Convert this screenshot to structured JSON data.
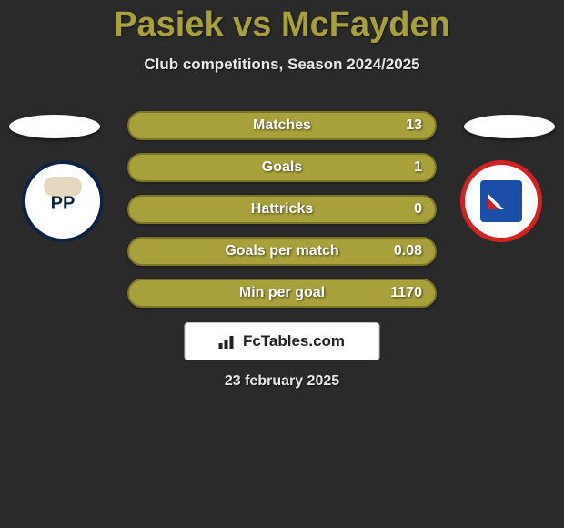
{
  "header": {
    "title": "Pasiek vs McFayden",
    "subtitle": "Club competitions, Season 2024/2025"
  },
  "style": {
    "background_color": "#2a2a2a",
    "title_color": "#a8a03a",
    "subtitle_color": "#e8e8e8",
    "bar_color": "#a8a03a",
    "bar_border_color": "#7b7528",
    "text_color": "#ffffff",
    "title_fontsize": 38,
    "subtitle_fontsize": 17,
    "bar_label_fontsize": 16
  },
  "crests": {
    "left": {
      "name": "preston-north-end",
      "bg": "#ffffff",
      "border": "#0e2244",
      "text": "PP"
    },
    "right": {
      "name": "afc-fylde",
      "bg": "#ffffff",
      "border": "#d22222",
      "inner": "#1a4ea8"
    }
  },
  "stats": [
    {
      "label": "Matches",
      "value": "13"
    },
    {
      "label": "Goals",
      "value": "1"
    },
    {
      "label": "Hattricks",
      "value": "0"
    },
    {
      "label": "Goals per match",
      "value": "0.08"
    },
    {
      "label": "Min per goal",
      "value": "1170"
    }
  ],
  "brand": {
    "text": "FcTables.com"
  },
  "date": "23 february 2025"
}
